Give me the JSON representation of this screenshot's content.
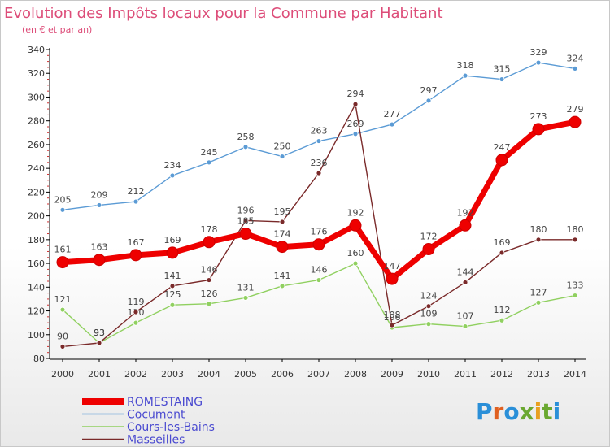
{
  "chart_data": {
    "type": "line",
    "title": "Evolution des Impôts locaux pour la Commune par Habitant",
    "subtitle": "(en € et par an)",
    "x": [
      "2000",
      "2001",
      "2002",
      "2003",
      "2004",
      "2005",
      "2006",
      "2007",
      "2008",
      "2009",
      "2010",
      "2011",
      "2012",
      "2013",
      "2014"
    ],
    "ylim": [
      80,
      340
    ],
    "yticks": [
      80,
      100,
      120,
      140,
      160,
      180,
      200,
      220,
      240,
      260,
      280,
      300,
      320,
      340
    ],
    "grid": false,
    "legend_position": "bottom-left",
    "series": [
      {
        "name": "ROMESTAING",
        "color": "#ee0000",
        "values": [
          161,
          163,
          167,
          169,
          178,
          185,
          174,
          176,
          192,
          147,
          172,
          192,
          247,
          273,
          279
        ]
      },
      {
        "name": "Cocumont",
        "color": "#5b9bd5",
        "values": [
          205,
          209,
          212,
          234,
          245,
          258,
          250,
          263,
          269,
          277,
          297,
          318,
          315,
          329,
          324
        ]
      },
      {
        "name": "Cours-les-Bains",
        "color": "#90d060",
        "values": [
          121,
          93,
          110,
          125,
          126,
          131,
          141,
          146,
          160,
          106,
          109,
          107,
          112,
          127,
          133
        ]
      },
      {
        "name": "Masseilles",
        "color": "#7a2a2a",
        "values": [
          90,
          93,
          119,
          141,
          146,
          196,
          195,
          236,
          294,
          108,
          124,
          144,
          169,
          180,
          180
        ]
      }
    ]
  },
  "brand": {
    "text": "Proxiti"
  }
}
